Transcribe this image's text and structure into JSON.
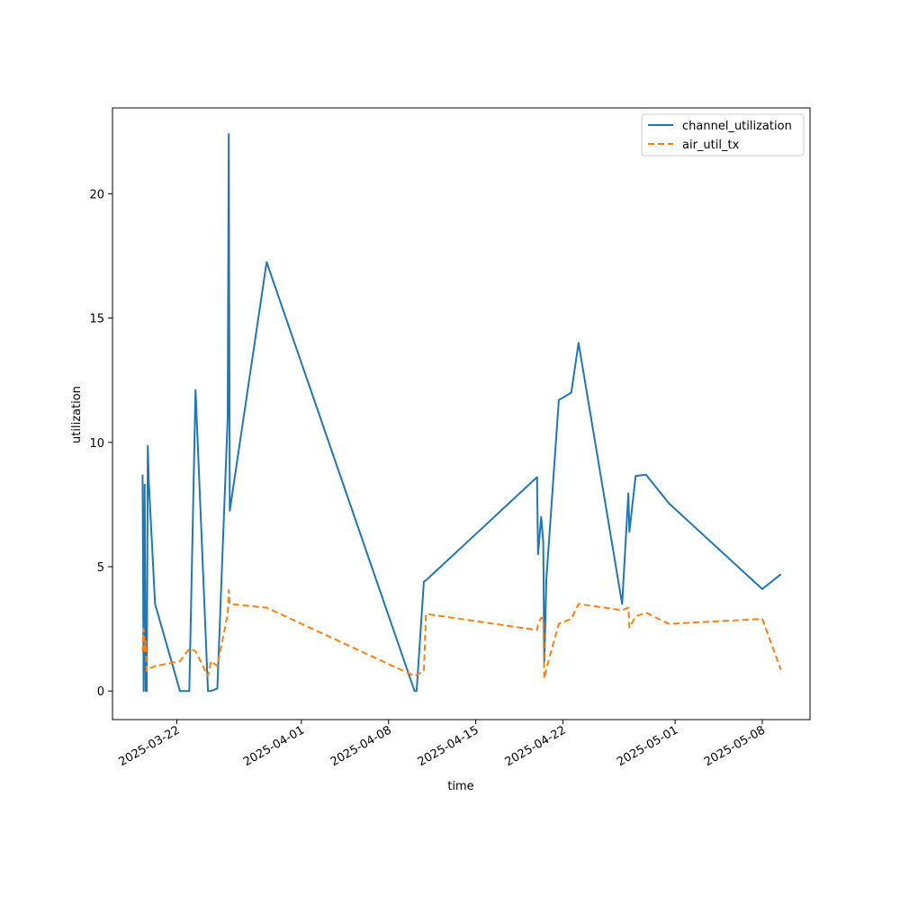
{
  "chart_data": {
    "type": "line",
    "xlabel": "time",
    "ylabel": "utilization",
    "x_axis_type": "date",
    "xlim": [
      "2025-03-16 20:00",
      "2025-05-11 20:00"
    ],
    "ylim": [
      -1.15,
      23.45
    ],
    "x_ticks": [
      "2025-03-22",
      "2025-04-01",
      "2025-04-08",
      "2025-04-15",
      "2025-04-22",
      "2025-05-01",
      "2025-05-08"
    ],
    "y_ticks": [
      0,
      5,
      10,
      15,
      20
    ],
    "grid": false,
    "legend_position": "top-right",
    "series": [
      {
        "name": "channel_utilization",
        "color": "#1f77b4",
        "style": "solid",
        "x": [
          "2025-03-19 06:00",
          "2025-03-19 08:00",
          "2025-03-19 10:00",
          "2025-03-19 12:00",
          "2025-03-19 14:00",
          "2025-03-19 16:00",
          "2025-03-19 18:00",
          "2025-03-20 06:00",
          "2025-03-22 06:00",
          "2025-03-23 00:00",
          "2025-03-23 12:00",
          "2025-03-24 12:00",
          "2025-03-24 18:00",
          "2025-03-25 06:00",
          "2025-03-26 02:00",
          "2025-03-26 04:00",
          "2025-03-26 06:00",
          "2025-03-29 05:00",
          "2025-04-10 02:00",
          "2025-04-10 06:00",
          "2025-04-10 20:00",
          "2025-04-11 00:00",
          "2025-04-19 22:00",
          "2025-04-20 00:00",
          "2025-04-20 06:00",
          "2025-04-20 10:00",
          "2025-04-20 12:00",
          "2025-04-20 16:00",
          "2025-04-21 16:00",
          "2025-04-22 16:00",
          "2025-04-23 06:00",
          "2025-04-26 18:00",
          "2025-04-27 06:00",
          "2025-04-27 08:00",
          "2025-04-27 20:00",
          "2025-04-28 16:00",
          "2025-04-30 12:00",
          "2025-05-08 00:00",
          "2025-05-09 12:00"
        ],
        "values": [
          8.7,
          0.0,
          8.3,
          0.0,
          0.0,
          9.85,
          8.4,
          3.5,
          0.0,
          0.0,
          12.1,
          0.0,
          0.0,
          0.1,
          11.0,
          22.4,
          7.25,
          17.25,
          0.0,
          0.0,
          4.4,
          4.45,
          8.6,
          5.5,
          7.0,
          6.0,
          1.2,
          4.5,
          11.7,
          12.0,
          14.0,
          3.5,
          7.95,
          6.4,
          8.65,
          8.7,
          7.55,
          4.1,
          4.7
        ]
      },
      {
        "name": "air_util_tx",
        "color": "#ff7f0e",
        "style": "dashed",
        "x": [
          "2025-03-19 06:00",
          "2025-03-19 08:00",
          "2025-03-19 10:00",
          "2025-03-19 12:00",
          "2025-03-19 14:00",
          "2025-03-19 16:00",
          "2025-03-19 18:00",
          "2025-03-20 06:00",
          "2025-03-22 06:00",
          "2025-03-23 00:00",
          "2025-03-23 12:00",
          "2025-03-24 12:00",
          "2025-03-24 18:00",
          "2025-03-25 06:00",
          "2025-03-26 02:00",
          "2025-03-26 04:00",
          "2025-03-26 06:00",
          "2025-03-29 05:00",
          "2025-04-10 02:00",
          "2025-04-10 06:00",
          "2025-04-10 20:00",
          "2025-04-11 00:00",
          "2025-04-19 22:00",
          "2025-04-20 00:00",
          "2025-04-20 06:00",
          "2025-04-20 10:00",
          "2025-04-20 12:00",
          "2025-04-20 16:00",
          "2025-04-21 16:00",
          "2025-04-22 16:00",
          "2025-04-23 06:00",
          "2025-04-26 18:00",
          "2025-04-27 06:00",
          "2025-04-27 08:00",
          "2025-04-27 20:00",
          "2025-04-28 16:00",
          "2025-04-30 12:00",
          "2025-05-08 00:00",
          "2025-05-09 12:00"
        ],
        "values": [
          1.6,
          2.5,
          1.6,
          2.0,
          0.8,
          0.85,
          0.9,
          1.0,
          1.2,
          1.7,
          1.6,
          0.6,
          1.2,
          1.0,
          3.1,
          4.05,
          3.5,
          3.35,
          0.6,
          0.65,
          0.8,
          3.1,
          2.45,
          2.7,
          2.95,
          2.9,
          0.5,
          0.9,
          2.7,
          2.9,
          3.5,
          3.25,
          3.35,
          2.55,
          3.0,
          3.15,
          2.7,
          2.9,
          0.85
        ]
      }
    ]
  }
}
